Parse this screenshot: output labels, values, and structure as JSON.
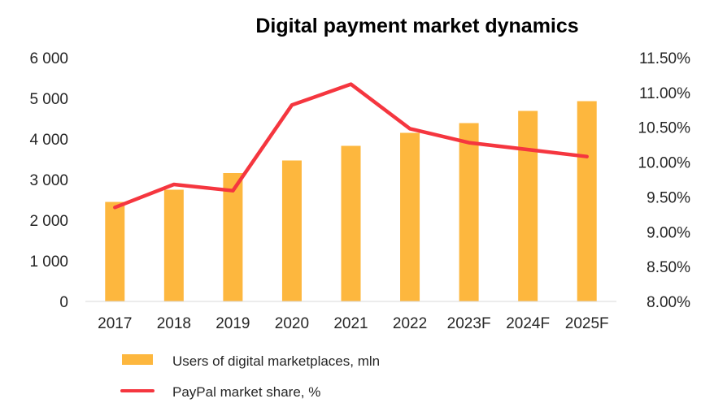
{
  "chart_data": {
    "type": "bar",
    "title": "Digital payment market dynamics",
    "categories": [
      "2017",
      "2018",
      "2019",
      "2020",
      "2021",
      "2022",
      "2023F",
      "2024F",
      "2025F"
    ],
    "series": [
      {
        "name": "Users of digital marketplaces, mln",
        "type": "bar",
        "axis": "left",
        "color": "#FDB73E",
        "values": [
          2450,
          2750,
          3160,
          3470,
          3830,
          4150,
          4390,
          4690,
          4930
        ]
      },
      {
        "name": "PayPal market share, %",
        "type": "line",
        "axis": "right",
        "color": "#F5363F",
        "values": [
          9.35,
          9.68,
          9.59,
          10.82,
          11.12,
          10.48,
          10.28,
          10.18,
          10.08
        ]
      }
    ],
    "y_left": {
      "min": 0,
      "max": 6000,
      "ticks": [
        0,
        1000,
        2000,
        3000,
        4000,
        5000,
        6000
      ],
      "tick_labels": [
        "0",
        "1 000",
        "2 000",
        "3 000",
        "4 000",
        "5 000",
        "6 000"
      ]
    },
    "y_right": {
      "min": 8.0,
      "max": 11.5,
      "ticks": [
        8.0,
        8.5,
        9.0,
        9.5,
        10.0,
        10.5,
        11.0,
        11.5
      ],
      "tick_labels": [
        "8.00%",
        "8.50%",
        "9.00%",
        "9.50%",
        "10.00%",
        "10.50%",
        "11.00%",
        "11.50%"
      ]
    },
    "grid": false,
    "legend_position": "bottom-left"
  }
}
